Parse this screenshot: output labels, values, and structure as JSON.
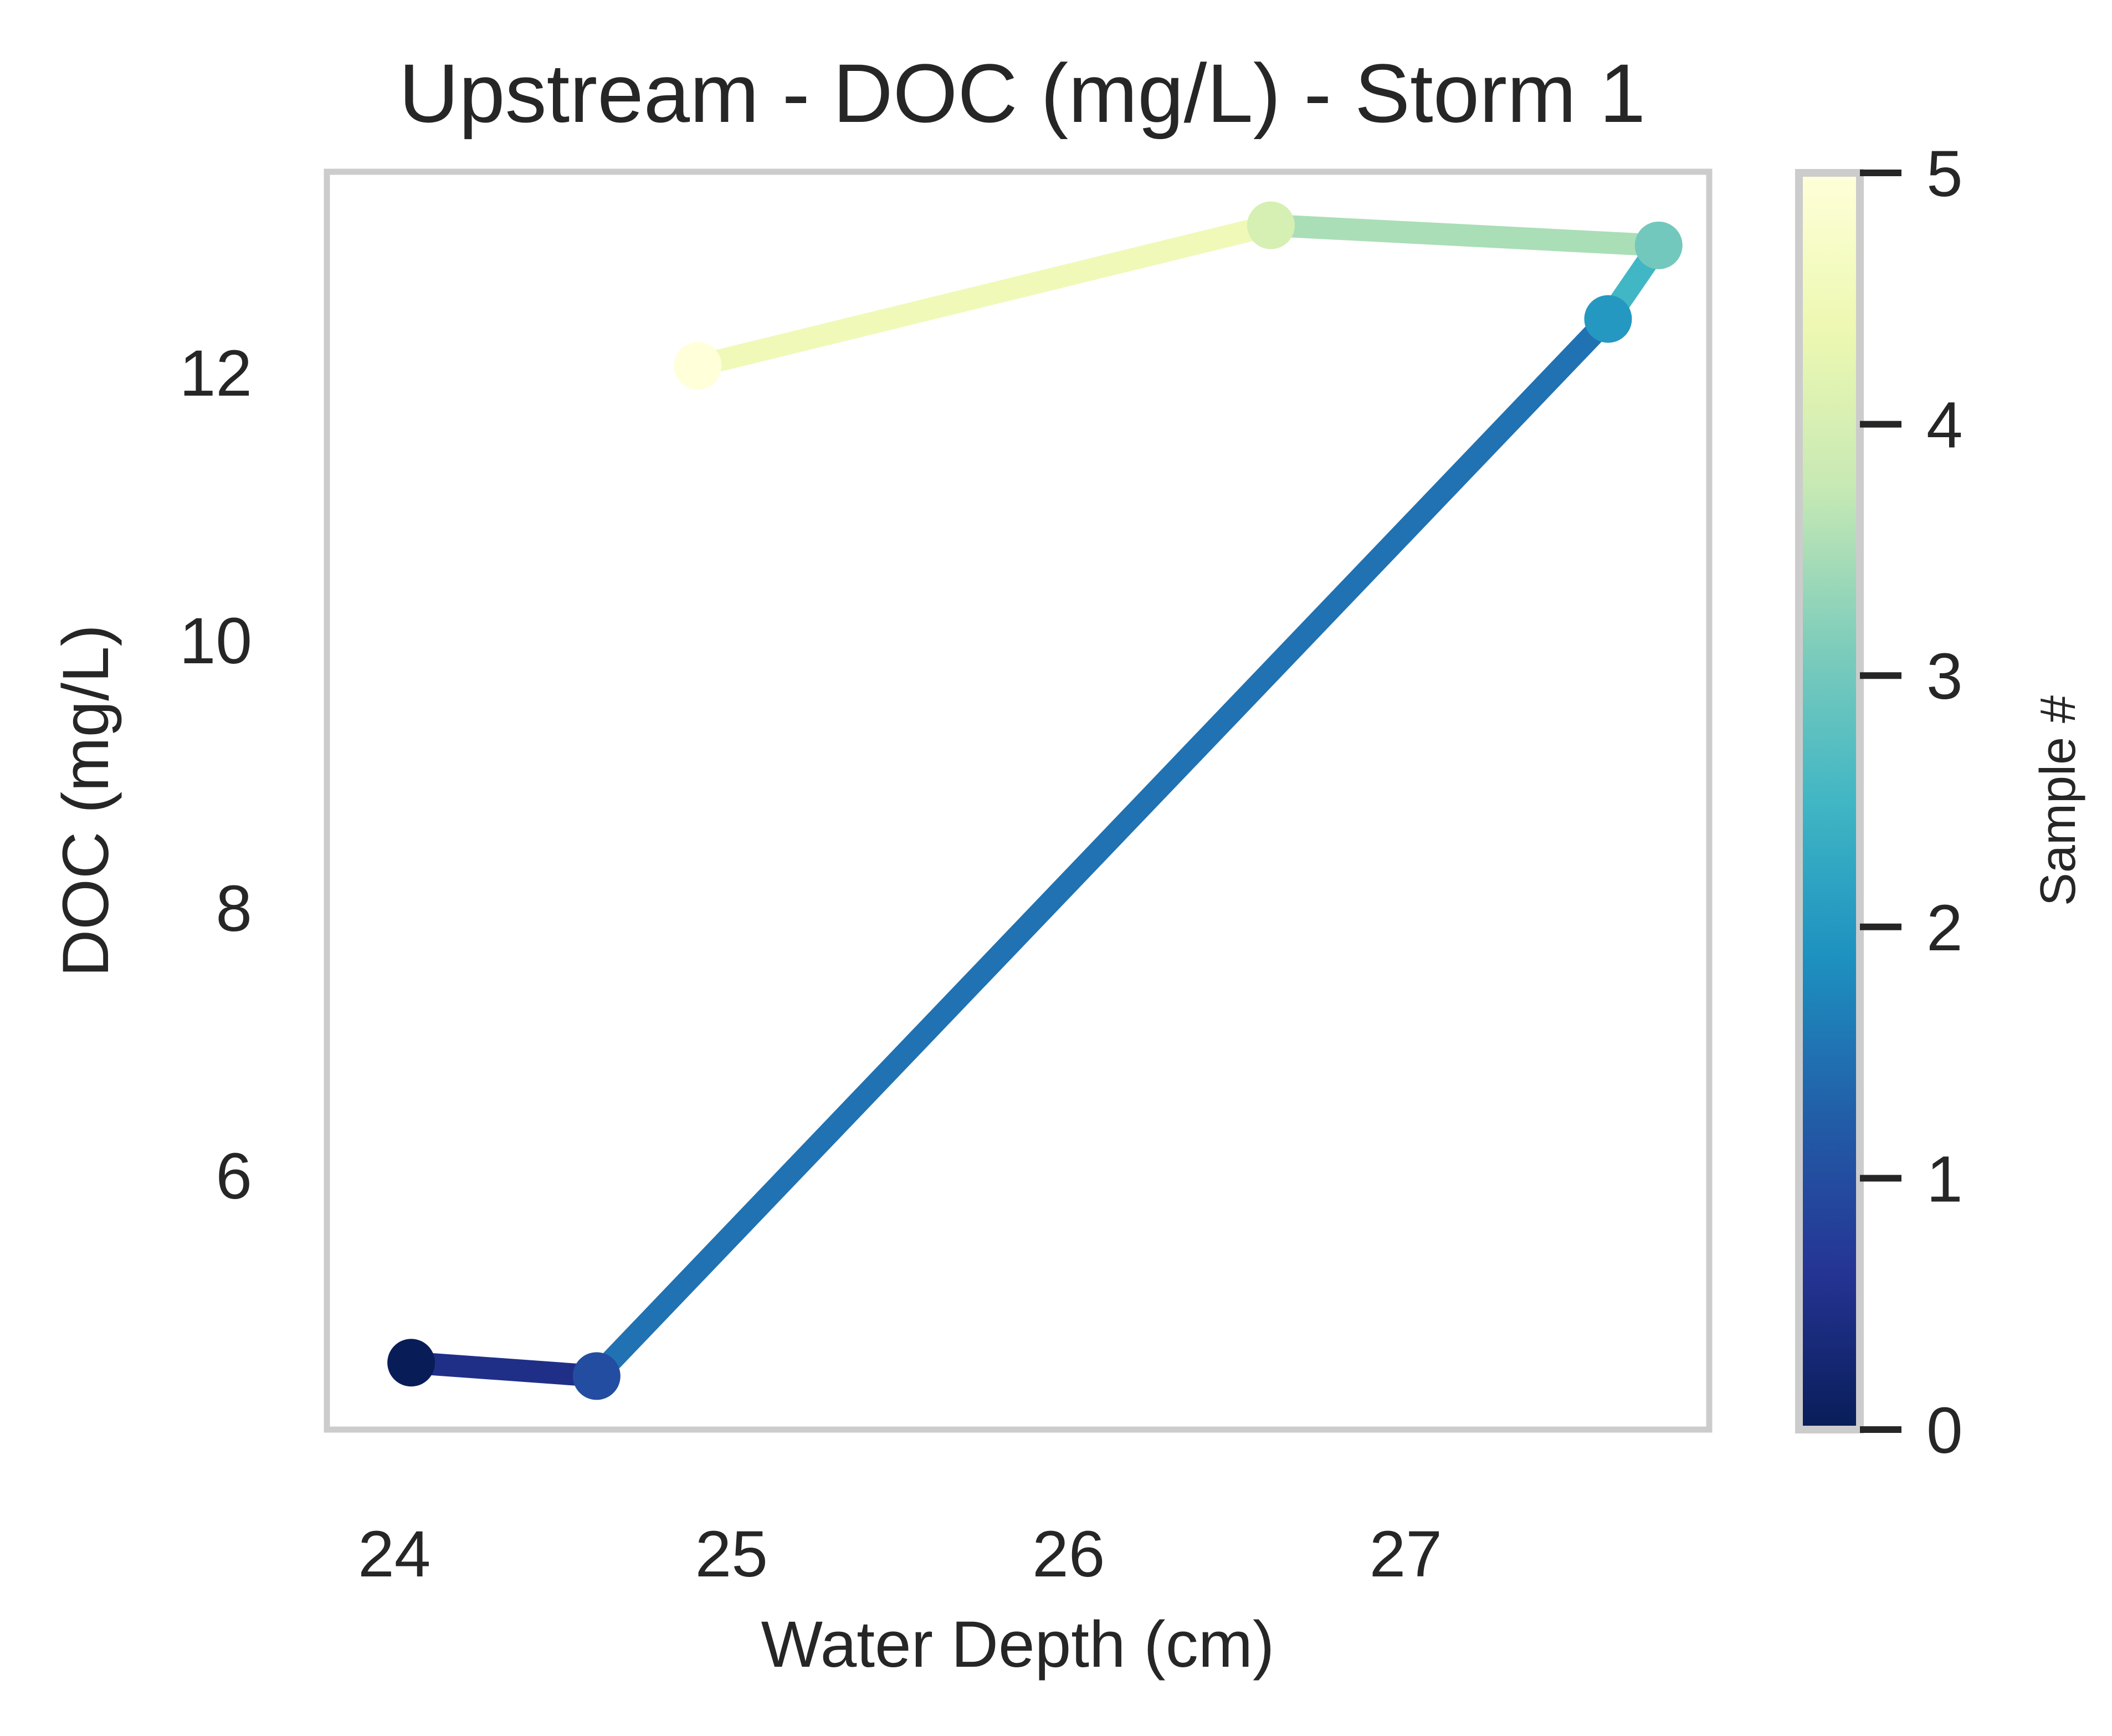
{
  "chart_data": {
    "type": "line",
    "title": "Upstream - DOC (mg/L) - Storm 1",
    "xlabel": "Water Depth (cm)",
    "ylabel": "DOC (mg/L)",
    "xlim": [
      23.8,
      27.9
    ],
    "ylim": [
      4.1,
      13.5
    ],
    "xticks": [
      "24",
      "25",
      "26",
      "27"
    ],
    "yticks": [
      "6",
      "8",
      "10",
      "12"
    ],
    "grid": false,
    "colormap": "YlGnBu_r",
    "points": [
      {
        "sample": 0,
        "x": 24.05,
        "y": 4.6
      },
      {
        "sample": 1,
        "x": 24.6,
        "y": 4.5
      },
      {
        "sample": 2,
        "x": 27.6,
        "y": 12.4
      },
      {
        "sample": 3,
        "x": 27.75,
        "y": 12.95
      },
      {
        "sample": 4,
        "x": 26.6,
        "y": 13.1
      },
      {
        "sample": 5,
        "x": 24.9,
        "y": 12.05
      }
    ],
    "colorbar": {
      "label": "Sample #",
      "range": [
        0,
        5
      ],
      "ticks": [
        "0",
        "1",
        "2",
        "3",
        "4",
        "5"
      ],
      "stops": [
        "#081d58",
        "#253494",
        "#225ea8",
        "#1d91c0",
        "#41b6c4",
        "#7fcdbb",
        "#c7e9b4",
        "#edf8b1",
        "#ffffd9"
      ]
    }
  }
}
